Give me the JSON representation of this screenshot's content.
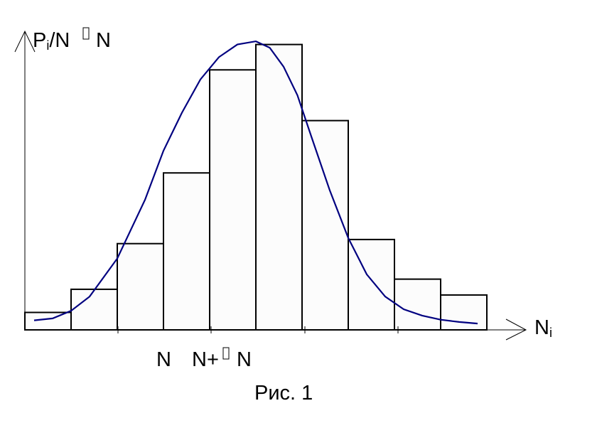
{
  "y_axis": {
    "p": "P",
    "sub": "i",
    "rest": "/N",
    "n": "N"
  },
  "x_axis": {
    "n": "N",
    "sub": "i"
  },
  "x_labels": {
    "n": "N",
    "n_plus": "N+",
    "n_after": "N"
  },
  "caption": "Рис. 1",
  "chart_data": {
    "type": "bar",
    "description_note": "",
    "bin_count": 10,
    "values": [
      0.055,
      0.128,
      0.272,
      0.495,
      0.82,
      0.9,
      0.66,
      0.285,
      0.16,
      0.11
    ],
    "ylim": [
      0,
      1
    ],
    "curve": {
      "x": [
        0.2,
        0.6,
        1.0,
        1.4,
        2.0,
        2.6,
        3.0,
        3.4,
        3.8,
        4.2,
        4.6,
        5.0,
        5.3,
        5.6,
        5.9,
        6.2,
        6.6,
        7.0,
        7.4,
        7.8,
        8.2,
        8.6,
        9.0,
        9.4,
        9.8
      ],
      "y": [
        0.03,
        0.036,
        0.06,
        0.105,
        0.225,
        0.41,
        0.565,
        0.685,
        0.79,
        0.86,
        0.9,
        0.91,
        0.89,
        0.83,
        0.74,
        0.61,
        0.44,
        0.29,
        0.175,
        0.105,
        0.065,
        0.045,
        0.032,
        0.025,
        0.02
      ]
    },
    "colors": {
      "curve": "#000080",
      "bars": "#fcfcfc"
    }
  }
}
